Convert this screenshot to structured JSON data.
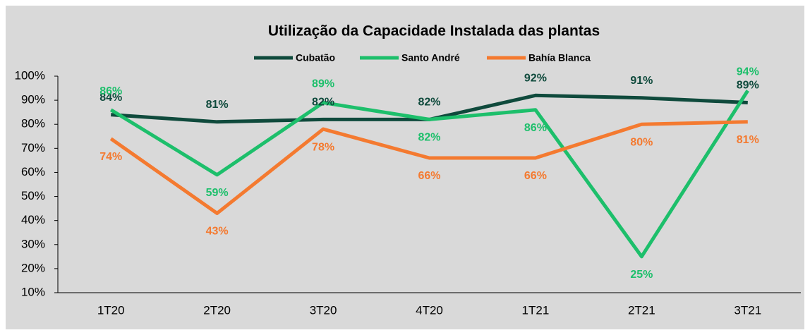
{
  "chart_data": {
    "type": "line",
    "title": "Utilização da Capacidade Instalada das plantas",
    "categories": [
      "1T20",
      "2T20",
      "3T20",
      "4T20",
      "1T21",
      "2T21",
      "3T21"
    ],
    "series": [
      {
        "name": "Cubatão",
        "color": "#0f4a3c",
        "values": [
          84,
          81,
          82,
          82,
          92,
          91,
          89
        ],
        "value_labels": [
          "84%",
          "81%",
          "82%",
          "82%",
          "92%",
          "91%",
          "89%"
        ]
      },
      {
        "name": "Santo André",
        "color": "#1dbf6b",
        "values": [
          86,
          59,
          89,
          82,
          86,
          25,
          94
        ],
        "value_labels": [
          "86%",
          "59%",
          "89%",
          "82%",
          "86%",
          "25%",
          "94%"
        ]
      },
      {
        "name": "Bahía Blanca",
        "color": "#f47a30",
        "values": [
          74,
          43,
          78,
          66,
          66,
          80,
          81
        ],
        "value_labels": [
          "74%",
          "43%",
          "78%",
          "66%",
          "66%",
          "80%",
          "81%"
        ]
      }
    ],
    "ylim": [
      10,
      100
    ],
    "yticks": [
      {
        "value": 10,
        "label": "10%"
      },
      {
        "value": 20,
        "label": "20%"
      },
      {
        "value": 30,
        "label": "30%"
      },
      {
        "value": 40,
        "label": "40%"
      },
      {
        "value": 50,
        "label": "50%"
      },
      {
        "value": 60,
        "label": "60%"
      },
      {
        "value": 70,
        "label": "70%"
      },
      {
        "value": 80,
        "label": "80%"
      },
      {
        "value": 90,
        "label": "90%"
      },
      {
        "value": 100,
        "label": "100%"
      }
    ],
    "grid": false,
    "legend": "top"
  }
}
